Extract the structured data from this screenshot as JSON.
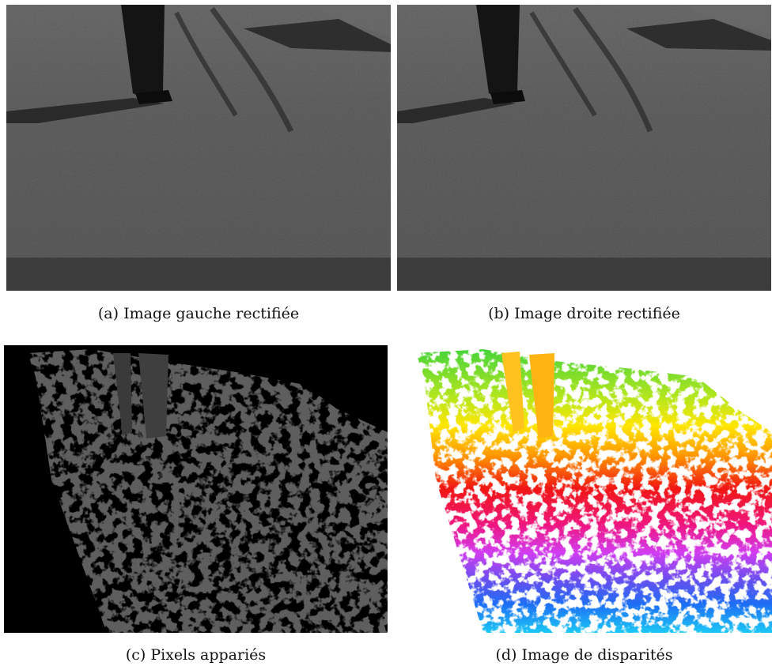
{
  "figure": {
    "panels": [
      {
        "id": "a",
        "caption": "(a) Image gauche rectifiée"
      },
      {
        "id": "b",
        "caption": "(b) Image droite rectifiée"
      },
      {
        "id": "c",
        "caption": "(c) Pixels appariés"
      },
      {
        "id": "d",
        "caption": "(d) Image de disparités"
      }
    ]
  }
}
